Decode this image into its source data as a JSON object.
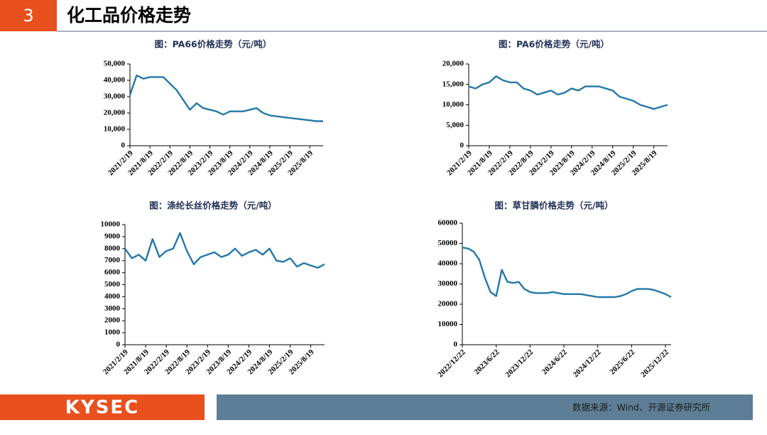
{
  "header": {
    "number": "3",
    "title": "化工品价格走势"
  },
  "footer": {
    "logo": "KYSEC",
    "source": "数据来源：Wind、开源证券研究所"
  },
  "chart_data": [
    {
      "type": "line",
      "title": "图：PA66价格走势（元/吨）",
      "categories": [
        "2021/2/19",
        null,
        null,
        "2021/8/19",
        null,
        null,
        "2022/2/19",
        null,
        null,
        "2022/8/19",
        null,
        null,
        "2023/2/19",
        null,
        null,
        "2023/8/19",
        null,
        null,
        "2024/2/19",
        null,
        null,
        "2024/8/19",
        null,
        null,
        "2025/2/19",
        null,
        null,
        "2025/8/19",
        null,
        null
      ],
      "series": [
        {
          "color": "#2378a8",
          "values": [
            31000,
            43000,
            41000,
            42000,
            42000,
            42000,
            38000,
            34000,
            28000,
            22000,
            26000,
            23000,
            22000,
            21000,
            19000,
            21000,
            21000,
            21000,
            22000,
            23000,
            20000,
            18500,
            18000,
            17500,
            17000,
            16500,
            16000,
            15500,
            15000,
            15000
          ]
        }
      ],
      "ylim": [
        0,
        50000
      ],
      "yticks": [
        0,
        {
          "value": 10000,
          "label": "10,000"
        },
        {
          "value": 20000,
          "label": "20,000"
        },
        {
          "value": 30000,
          "label": "30,000"
        },
        {
          "value": 40000,
          "label": "40,000"
        },
        {
          "value": 50000,
          "label": "50,000"
        }
      ]
    },
    {
      "type": "line",
      "title": "图：PA6价格走势（元/吨）",
      "categories": [
        "2021/2/19",
        null,
        null,
        "2021/8/19",
        null,
        null,
        "2022/2/19",
        null,
        null,
        "2022/8/19",
        null,
        null,
        "2023/2/19",
        null,
        null,
        "2023/8/19",
        null,
        null,
        "2024/2/19",
        null,
        null,
        "2024/8/19",
        null,
        null,
        "2025/2/19",
        null,
        null,
        "2025/8/19",
        null,
        null
      ],
      "series": [
        {
          "color": "#2378a8",
          "values": [
            14500,
            14000,
            15000,
            15500,
            17000,
            16000,
            15500,
            15500,
            14000,
            13500,
            12500,
            13000,
            13500,
            12500,
            13000,
            14000,
            13500,
            14500,
            14500,
            14500,
            14000,
            13500,
            12000,
            11500,
            11000,
            10000,
            9500,
            9000,
            9500,
            10000
          ]
        }
      ],
      "ylim": [
        0,
        20000
      ],
      "yticks": [
        0,
        {
          "value": 5000,
          "label": "5,000"
        },
        {
          "value": 10000,
          "label": "10,000"
        },
        {
          "value": 15000,
          "label": "15,000"
        },
        {
          "value": 20000,
          "label": "20,000"
        }
      ]
    },
    {
      "type": "line",
      "title": "图：涤纶长丝价格走势（元/吨）",
      "categories": [
        "2021/2/19",
        null,
        null,
        "2021/8/19",
        null,
        null,
        "2022/2/19",
        null,
        null,
        "2022/8/19",
        null,
        null,
        "2023/2/19",
        null,
        null,
        "2023/8/19",
        null,
        null,
        "2024/2/19",
        null,
        null,
        "2024/8/19",
        null,
        null,
        "2025/2/19",
        null,
        null,
        "2025/8/19",
        null,
        null
      ],
      "series": [
        {
          "color": "#2378a8",
          "values": [
            8000,
            7200,
            7500,
            7000,
            8800,
            7300,
            7800,
            8000,
            9300,
            7800,
            6700,
            7300,
            7500,
            7700,
            7300,
            7500,
            8000,
            7400,
            7700,
            7900,
            7500,
            8000,
            7000,
            6900,
            7200,
            6500,
            6800,
            6600,
            6400,
            6700
          ]
        }
      ],
      "ylim": [
        0,
        10000
      ],
      "yticks": [
        0,
        1000,
        2000,
        3000,
        4000,
        5000,
        6000,
        7000,
        8000,
        9000,
        10000
      ]
    },
    {
      "type": "line",
      "title": "图：草甘膦价格走势（元/吨）",
      "categories": [
        "2022/12/22",
        null,
        null,
        null,
        null,
        null,
        "2023/6/22",
        null,
        null,
        null,
        null,
        null,
        "2023/12/22",
        null,
        null,
        null,
        null,
        null,
        "2024/6/22",
        null,
        null,
        null,
        null,
        null,
        "2024/12/22",
        null,
        null,
        null,
        null,
        null,
        "2025/6/22",
        null,
        null,
        null,
        null,
        null,
        "2025/12/22",
        null
      ],
      "series": [
        {
          "color": "#2378a8",
          "values": [
            48000,
            47500,
            46000,
            42000,
            33000,
            26000,
            24000,
            37000,
            31000,
            30500,
            31000,
            27500,
            26000,
            25500,
            25500,
            25500,
            26000,
            25500,
            25000,
            25000,
            25000,
            25000,
            24500,
            24000,
            23500,
            23500,
            23500,
            23500,
            24000,
            25000,
            26500,
            27500,
            27500,
            27500,
            27000,
            26000,
            25000,
            23500
          ]
        }
      ],
      "ylim": [
        0,
        60000
      ],
      "yticks": [
        0,
        10000,
        20000,
        30000,
        40000,
        50000,
        60000
      ]
    }
  ]
}
